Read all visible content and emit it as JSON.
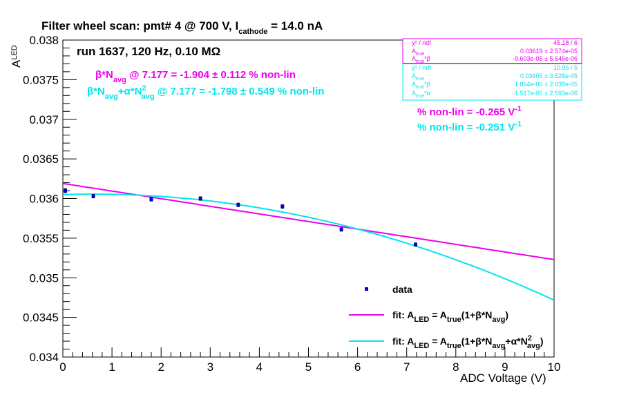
{
  "colors": {
    "fit1": "#ee00ee",
    "fit2": "#00e5ee",
    "data": "#0000cc",
    "axis": "#000000"
  },
  "header": {
    "title_a": "Filter wheel scan: pmt#   4 @   700 V, I",
    "title_sub": "cathode",
    "title_b": " = 14.0 nA",
    "run": "run 1637, 120 Hz, 0.10 MΩ"
  },
  "annotations": {
    "fit1_a": "β*N",
    "fit1_sub": "avg",
    "fit1_b": " @ 7.177 = -1.904 ± 0.112 % non-lin",
    "fit2_a": "β*N",
    "fit2_sub1": "avg",
    "fit2_b": "+α*N",
    "fit2_sup": "2",
    "fit2_sub2": "avg",
    "fit2_c": " @ 7.177 = -1.798 ± 0.549 % non-lin",
    "slope1_a": "% non-lin = -0.265 V",
    "slope1_sup": "-1",
    "slope2_a": "% non-lin = -0.251 V",
    "slope2_sup": "-1"
  },
  "stats1": {
    "r1_label": "χ² / ndf",
    "r1_value": "45.18 / 6",
    "r2_label": "A",
    "r2_sub": "true",
    "r2_value": "0.03619 ± 2.574e-05",
    "r3_label": "A",
    "r3_sub": "true",
    "r3_post": "*β",
    "r3_value": "-9.603e-05 ± 5.646e-06"
  },
  "stats2": {
    "r1_label": "χ² / ndf",
    "r1_value": "10.96 / 5",
    "r2_label": "A",
    "r2_sub": "true",
    "r2_value": "0.03605 ± 3.528e-05",
    "r3_label": "A",
    "r3_sub": "true",
    "r3_post": "*β",
    "r3_value": "1.854e-05 ± 2.038e-05",
    "r4_label": "A",
    "r4_sub": "true",
    "r4_post": "*α",
    "r4_value": "-1.517e-05 ± 2.593e-06"
  },
  "legend": {
    "data": "data",
    "fit1_a": "fit: A",
    "fit1_sub1": "LED",
    "fit1_b": " = A",
    "fit1_sub2": "true",
    "fit1_c": "(1+β*N",
    "fit1_sub3": "avg",
    "fit1_d": ")",
    "fit2_a": "fit: A",
    "fit2_sub1": "LED",
    "fit2_b": " = A",
    "fit2_sub2": "true",
    "fit2_c": "(1+β*N",
    "fit2_sub3": "avg",
    "fit2_d": "+α*N",
    "fit2_sup": "2",
    "fit2_sub4": "avg",
    "fit2_e": ")"
  },
  "axes": {
    "ylabel_main": "A",
    "ylabel_sub": "LED",
    "xlabel": "ADC Voltage (V)"
  },
  "chart_data": {
    "type": "scatter",
    "xlim": [
      0,
      10
    ],
    "ylim": [
      0.034,
      0.038
    ],
    "x_ticks": [
      "0",
      "1",
      "2",
      "3",
      "4",
      "5",
      "6",
      "7",
      "8",
      "9",
      "10"
    ],
    "y_ticks": [
      "0.034",
      "0.0345",
      "0.035",
      "0.0355",
      "0.036",
      "0.0365",
      "0.037",
      "0.0375",
      "0.038"
    ],
    "series": [
      {
        "name": "data",
        "x": [
          0.05,
          0.62,
          1.8,
          2.8,
          3.57,
          4.47,
          5.67,
          7.18
        ],
        "y": [
          0.0361,
          0.03603,
          0.03599,
          0.036,
          0.03592,
          0.0359,
          0.03561,
          0.03542
        ],
        "yerr": [
          2.5e-05,
          2.2e-05,
          2.2e-05,
          2.2e-05,
          2.2e-05,
          2.2e-05,
          2.2e-05,
          2e-05
        ]
      },
      {
        "name": "fit: A_LED = A_true(1+β*N_avg)",
        "A": 0.03619,
        "Ab": -9.603e-05
      },
      {
        "name": "fit: A_LED = A_true(1+β*N_avg+α*N²_avg)",
        "A": 0.03605,
        "Ab": 1.854e-05,
        "Aa": -1.517e-05
      }
    ]
  }
}
